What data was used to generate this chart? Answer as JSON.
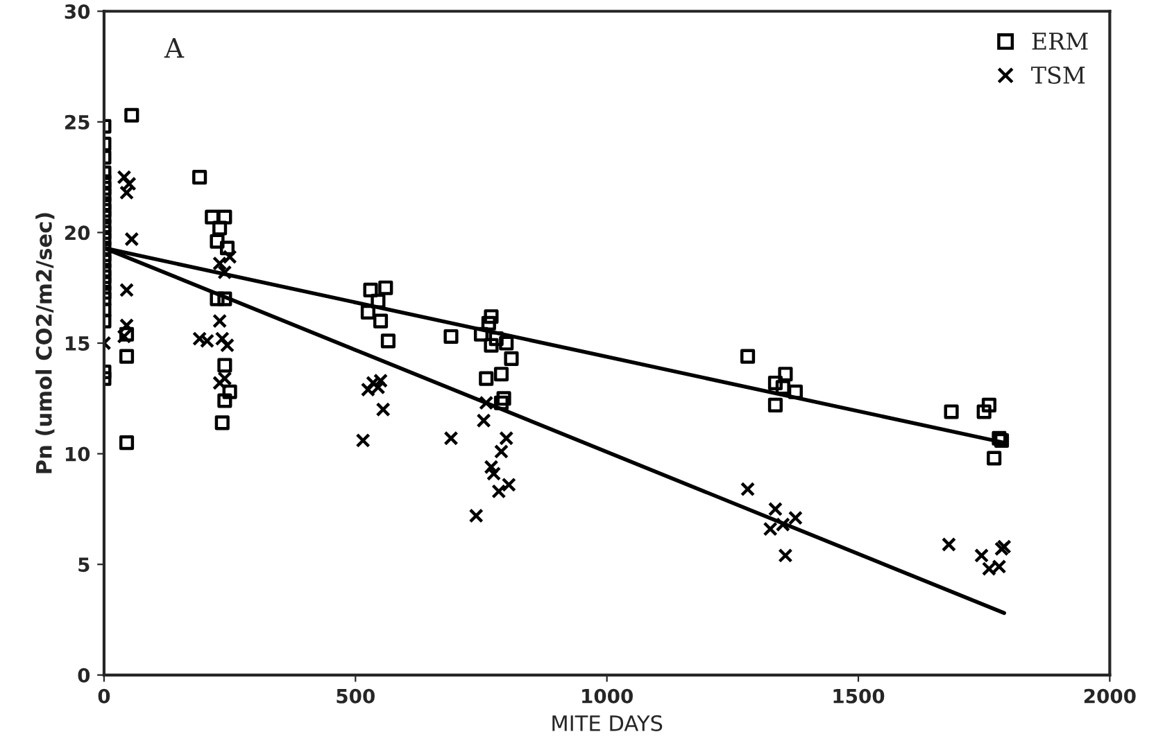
{
  "chart_data": {
    "type": "scatter",
    "xlabel": "MITE DAYS",
    "ylabel": "Pn (umol CO2/m2/sec)",
    "annotations": [
      "A"
    ],
    "xlim": [
      0,
      2000
    ],
    "xticks": [
      0,
      500,
      1000,
      1500,
      2000
    ],
    "ylim": [
      0,
      30
    ],
    "yticks": [
      0,
      5,
      10,
      15,
      20,
      25,
      30
    ],
    "grid": false,
    "legend": "top right",
    "series": [
      {
        "name": "ERM",
        "marker": "square",
        "color": "#000000",
        "x": [
          0,
          0,
          0,
          0,
          0,
          0,
          0,
          0,
          0,
          0,
          0,
          0,
          0,
          0,
          0,
          0,
          0,
          0,
          0,
          0,
          0,
          0,
          0,
          0,
          0,
          55,
          45,
          45,
          45,
          190,
          215,
          240,
          230,
          225,
          245,
          225,
          240,
          240,
          250,
          240,
          235,
          530,
          560,
          545,
          525,
          550,
          565,
          690,
          750,
          765,
          770,
          780,
          770,
          800,
          810,
          790,
          760,
          795,
          790,
          1280,
          1355,
          1335,
          1350,
          1375,
          1335,
          1685,
          1760,
          1750,
          1780,
          1785,
          1770
        ],
        "values": [
          13.4,
          13.7,
          16,
          16.5,
          17,
          17.3,
          17.7,
          18,
          18.3,
          18.7,
          19,
          19.3,
          19.7,
          20,
          20.3,
          20.7,
          21,
          21.3,
          21.7,
          22,
          22.3,
          22.7,
          23.4,
          24,
          24.8,
          25.3,
          15.4,
          14.4,
          10.5,
          22.5,
          20.7,
          20.7,
          20.2,
          19.6,
          19.3,
          17,
          17,
          14,
          12.8,
          12.4,
          11.4,
          17.4,
          17.5,
          16.9,
          16.4,
          16.0,
          15.1,
          15.3,
          15.4,
          15.9,
          16.2,
          15.2,
          14.9,
          15.0,
          14.3,
          13.6,
          13.4,
          12.5,
          12.3,
          14.4,
          13.6,
          13.2,
          13.0,
          12.8,
          12.2,
          11.9,
          12.2,
          11.9,
          10.7,
          10.6,
          9.8
        ]
      },
      {
        "name": "TSM",
        "marker": "cross",
        "color": "#000000",
        "x": [
          0,
          40,
          50,
          45,
          55,
          45,
          45,
          40,
          190,
          205,
          230,
          250,
          240,
          230,
          235,
          245,
          240,
          230,
          515,
          525,
          535,
          545,
          550,
          555,
          690,
          740,
          755,
          760,
          770,
          775,
          785,
          790,
          800,
          805,
          1280,
          1335,
          1325,
          1350,
          1375,
          1355,
          1680,
          1745,
          1760,
          1780,
          1785,
          1790
        ],
        "values": [
          15.0,
          22.5,
          22.2,
          21.8,
          19.7,
          17.4,
          15.8,
          15.3,
          15.2,
          15.1,
          18.6,
          18.9,
          18.2,
          16.0,
          15.2,
          14.9,
          13.4,
          13.2,
          10.6,
          12.9,
          13.2,
          13.0,
          13.3,
          12.0,
          10.7,
          7.2,
          11.5,
          12.3,
          9.4,
          9.1,
          8.3,
          10.1,
          10.7,
          8.6,
          8.4,
          7.5,
          6.6,
          6.8,
          7.1,
          5.4,
          5.9,
          5.4,
          4.8,
          4.9,
          5.7,
          5.8
        ]
      },
      {
        "type": "line",
        "color": "#000000",
        "line_style": "solid",
        "x": [
          0,
          1790
        ],
        "values": [
          19.3,
          10.5
        ]
      },
      {
        "type": "line",
        "color": "#000000",
        "line_style": "solid",
        "x": [
          0,
          1790
        ],
        "values": [
          19.3,
          2.8
        ]
      }
    ]
  }
}
